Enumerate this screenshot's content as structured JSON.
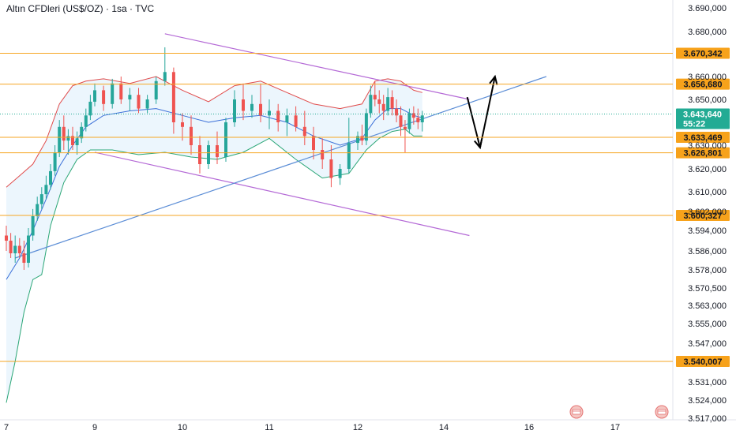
{
  "header": {
    "title": "Altın CFDleri (US$/OZ) · 1sa · TVC"
  },
  "colors": {
    "bull": "#26a69a",
    "bear": "#ef5350",
    "level_line": "#f6a623",
    "level_label_bg": "#f7a21b",
    "price_bg": "#22ab94",
    "band_upper": "#e04b4b",
    "band_lower": "#2aa676",
    "band_mid": "#3a6fd8",
    "band_fill": "#dceefc",
    "channel": "#b469d6",
    "trendline": "#5b8dd6",
    "arrow": "#000000",
    "grid": "#f0f3fa"
  },
  "icons": [
    "calendar-event-icon",
    "calendar-event-icon"
  ],
  "chart_data": {
    "type": "candlestick",
    "title": "Altın CFDleri (US$/OZ) · 1sa · TVC",
    "x_ticks": [
      "7",
      "9",
      "10",
      "11",
      "12",
      "14",
      "16",
      "17"
    ],
    "y_ticks": [
      "3.690,000",
      "3.680,000",
      "3.660,000",
      "3.650,000",
      "3.630,000",
      "3.620,000",
      "3.610,000",
      "3.602,000",
      "3.594,000",
      "3.586,000",
      "3.578,000",
      "3.570,500",
      "3.563,000",
      "3.555,000",
      "3.547,000",
      "3.531,000",
      "3.524,000",
      "3.517,000"
    ],
    "levels": [
      {
        "label": "3.670,342",
        "value": 3670.342
      },
      {
        "label": "3.656,680",
        "value": 3656.68
      },
      {
        "label": "3.633,469",
        "value": 3633.469
      },
      {
        "label": "3.626,801",
        "value": 3626.801
      },
      {
        "label": "3.600,327",
        "value": 3600.327
      },
      {
        "label": "3.540,007",
        "value": 3540.007
      }
    ],
    "current_price": {
      "label": "3.643,640",
      "value": 3643.64,
      "countdown": "55:22"
    },
    "candles": [
      [
        7.0,
        3592,
        3596,
        3586,
        3590
      ],
      [
        7.1,
        3590,
        3593,
        3583,
        3585
      ],
      [
        7.2,
        3585,
        3592,
        3581,
        3588
      ],
      [
        7.3,
        3588,
        3591,
        3583,
        3585
      ],
      [
        7.4,
        3585,
        3590,
        3578,
        3581
      ],
      [
        7.5,
        3581,
        3595,
        3579,
        3592
      ],
      [
        7.6,
        3592,
        3603,
        3590,
        3600
      ],
      [
        7.7,
        3600,
        3608,
        3598,
        3605
      ],
      [
        7.8,
        3605,
        3612,
        3603,
        3609
      ],
      [
        7.9,
        3609,
        3617,
        3607,
        3613
      ],
      [
        8.0,
        3613,
        3622,
        3611,
        3619
      ],
      [
        8.1,
        3619,
        3630,
        3617,
        3627
      ],
      [
        8.2,
        3627,
        3641,
        3625,
        3638
      ],
      [
        8.3,
        3638,
        3643,
        3628,
        3632
      ],
      [
        8.4,
        3632,
        3637,
        3626,
        3634
      ],
      [
        8.5,
        3634,
        3638,
        3628,
        3630
      ],
      [
        8.6,
        3630,
        3636,
        3626,
        3633
      ],
      [
        8.7,
        3633,
        3640,
        3631,
        3638
      ],
      [
        8.8,
        3638,
        3646,
        3636,
        3643
      ],
      [
        8.9,
        3643,
        3652,
        3641,
        3649
      ],
      [
        9.0,
        3649,
        3657,
        3647,
        3654
      ],
      [
        9.1,
        3654,
        3656,
        3645,
        3648
      ],
      [
        9.2,
        3648,
        3659,
        3646,
        3657
      ],
      [
        9.3,
        3657,
        3660,
        3648,
        3650
      ],
      [
        9.4,
        3650,
        3655,
        3645,
        3652
      ],
      [
        9.5,
        3652,
        3655,
        3644,
        3646
      ],
      [
        9.6,
        3646,
        3652,
        3644,
        3650
      ],
      [
        9.7,
        3650,
        3660,
        3648,
        3658
      ],
      [
        9.8,
        3658,
        3673,
        3656,
        3662
      ],
      [
        9.9,
        3662,
        3664,
        3635,
        3640
      ],
      [
        10.0,
        3640,
        3644,
        3632,
        3638
      ],
      [
        10.1,
        3638,
        3643,
        3626,
        3630
      ],
      [
        10.2,
        3630,
        3634,
        3618,
        3622
      ],
      [
        10.3,
        3622,
        3632,
        3620,
        3630
      ],
      [
        10.4,
        3630,
        3636,
        3622,
        3625
      ],
      [
        10.5,
        3625,
        3642,
        3623,
        3640
      ],
      [
        10.6,
        3640,
        3654,
        3638,
        3650
      ],
      [
        10.7,
        3650,
        3657,
        3641,
        3645
      ],
      [
        10.8,
        3645,
        3652,
        3642,
        3648
      ],
      [
        10.9,
        3648,
        3657,
        3640,
        3643
      ],
      [
        11.0,
        3643,
        3650,
        3637,
        3645
      ],
      [
        11.1,
        3645,
        3648,
        3636,
        3640
      ],
      [
        11.2,
        3640,
        3646,
        3634,
        3643
      ],
      [
        11.3,
        3643,
        3647,
        3636,
        3638
      ],
      [
        11.4,
        3638,
        3645,
        3630,
        3634
      ],
      [
        11.5,
        3634,
        3638,
        3624,
        3628
      ],
      [
        11.6,
        3628,
        3633,
        3620,
        3624
      ],
      [
        11.7,
        3624,
        3630,
        3612,
        3616
      ],
      [
        11.8,
        3616,
        3622,
        3613,
        3620
      ],
      [
        11.9,
        3620,
        3642,
        3618,
        3631
      ],
      [
        12.0,
        3631,
        3636,
        3628,
        3634
      ],
      [
        12.1,
        3634,
        3639,
        3630,
        3632
      ],
      [
        12.2,
        3632,
        3646,
        3630,
        3644
      ],
      [
        12.3,
        3644,
        3656,
        3642,
        3652
      ],
      [
        12.4,
        3652,
        3658,
        3647,
        3650
      ],
      [
        12.5,
        3650,
        3654,
        3644,
        3648
      ],
      [
        12.6,
        3648,
        3652,
        3641,
        3645
      ],
      [
        12.7,
        3645,
        3655,
        3643,
        3651
      ],
      [
        12.8,
        3651,
        3654,
        3643,
        3646
      ],
      [
        12.9,
        3646,
        3650,
        3640,
        3643
      ],
      [
        13.0,
        3643,
        3647,
        3634,
        3638
      ],
      [
        13.1,
        3638,
        3641,
        3627,
        3637
      ],
      [
        13.2,
        3637,
        3646,
        3635,
        3644
      ],
      [
        13.3,
        3644,
        3647,
        3639,
        3642
      ],
      [
        13.4,
        3642,
        3646,
        3637,
        3640
      ],
      [
        13.5,
        3640,
        3645,
        3636,
        3643
      ]
    ],
    "band_upper": [
      [
        7.0,
        3612
      ],
      [
        7.3,
        3617
      ],
      [
        7.6,
        3622
      ],
      [
        7.9,
        3632
      ],
      [
        8.2,
        3648
      ],
      [
        8.5,
        3656
      ],
      [
        8.8,
        3658
      ],
      [
        9.1,
        3659
      ],
      [
        9.4,
        3657
      ],
      [
        9.7,
        3660
      ],
      [
        10.0,
        3654
      ],
      [
        10.3,
        3649
      ],
      [
        10.6,
        3656
      ],
      [
        10.9,
        3658
      ],
      [
        11.2,
        3653
      ],
      [
        11.5,
        3648
      ],
      [
        11.8,
        3646
      ],
      [
        12.1,
        3648
      ],
      [
        12.4,
        3658
      ],
      [
        12.7,
        3659
      ],
      [
        13.0,
        3658
      ],
      [
        13.3,
        3654
      ],
      [
        13.5,
        3653
      ]
    ],
    "band_mid": [
      [
        7.0,
        3574
      ],
      [
        7.3,
        3583
      ],
      [
        7.6,
        3594
      ],
      [
        7.9,
        3607
      ],
      [
        8.2,
        3621
      ],
      [
        8.5,
        3630
      ],
      [
        8.8,
        3638
      ],
      [
        9.1,
        3643
      ],
      [
        9.4,
        3645
      ],
      [
        9.7,
        3646
      ],
      [
        10.0,
        3643
      ],
      [
        10.3,
        3640
      ],
      [
        10.6,
        3642
      ],
      [
        10.9,
        3643
      ],
      [
        11.2,
        3640
      ],
      [
        11.5,
        3634
      ],
      [
        11.8,
        3630
      ],
      [
        12.1,
        3633
      ],
      [
        12.4,
        3641
      ],
      [
        12.7,
        3646
      ],
      [
        13.0,
        3646
      ],
      [
        13.3,
        3643
      ],
      [
        13.5,
        3642
      ]
    ],
    "band_lower": [
      [
        7.0,
        3523
      ],
      [
        7.2,
        3540
      ],
      [
        7.4,
        3560
      ],
      [
        7.6,
        3574
      ],
      [
        7.8,
        3576
      ],
      [
        8.0,
        3596
      ],
      [
        8.3,
        3614
      ],
      [
        8.6,
        3624
      ],
      [
        8.9,
        3628
      ],
      [
        9.2,
        3628
      ],
      [
        9.5,
        3626
      ],
      [
        9.8,
        3627
      ],
      [
        10.1,
        3625
      ],
      [
        10.4,
        3624
      ],
      [
        10.7,
        3627
      ],
      [
        11.0,
        3633
      ],
      [
        11.3,
        3624
      ],
      [
        11.6,
        3616
      ],
      [
        11.9,
        3618
      ],
      [
        12.2,
        3628
      ],
      [
        12.5,
        3633
      ],
      [
        12.8,
        3636
      ],
      [
        13.1,
        3637
      ],
      [
        13.3,
        3634
      ],
      [
        13.5,
        3634
      ]
    ],
    "channel_upper": [
      [
        9.8,
        3679
      ],
      [
        14.6,
        3650
      ]
    ],
    "channel_lower": [
      [
        9.0,
        3627
      ],
      [
        14.6,
        3592
      ]
    ],
    "trendline": [
      [
        7.2,
        3583
      ],
      [
        16.2,
        3660
      ]
    ],
    "projection_arrow": [
      [
        14.55,
        3651
      ],
      [
        14.85,
        3629
      ],
      [
        15.2,
        3660
      ]
    ]
  }
}
